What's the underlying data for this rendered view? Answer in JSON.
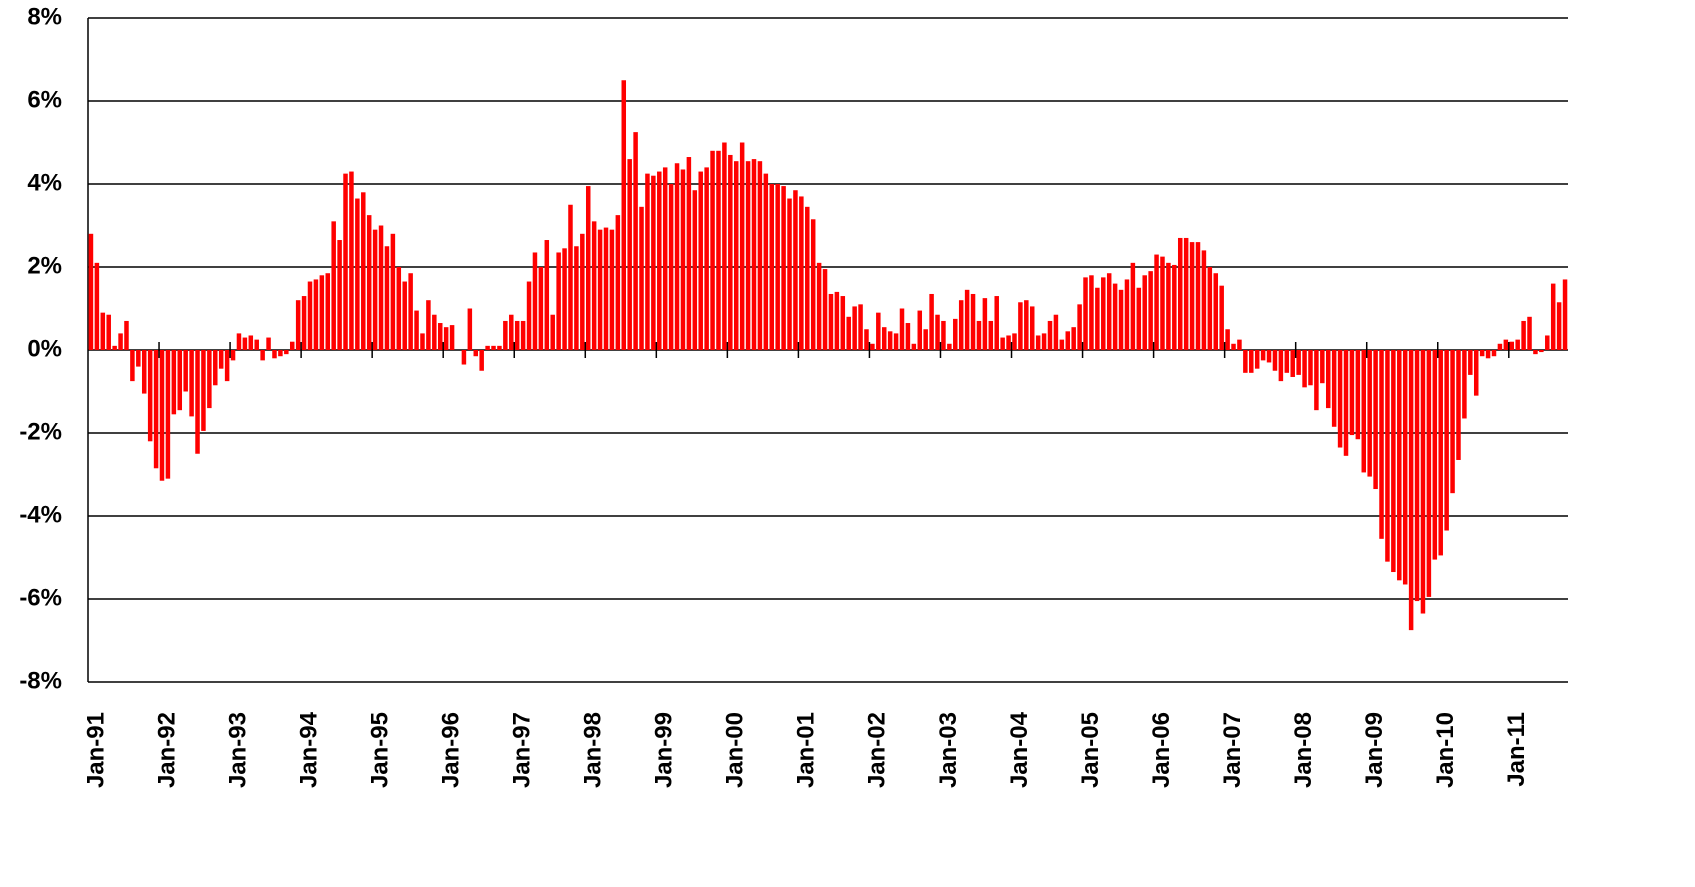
{
  "chart_data": {
    "type": "bar",
    "color": "#ff0000",
    "grid": true,
    "ylim": [
      -8,
      8
    ],
    "yticks": [
      {
        "value": -8,
        "label": "-8%"
      },
      {
        "value": -6,
        "label": "-6%"
      },
      {
        "value": -4,
        "label": "-4%"
      },
      {
        "value": -2,
        "label": "-2%"
      },
      {
        "value": 0,
        "label": "0%"
      },
      {
        "value": 2,
        "label": "2%"
      },
      {
        "value": 4,
        "label": "4%"
      },
      {
        "value": 6,
        "label": "6%"
      },
      {
        "value": 8,
        "label": "8%"
      }
    ],
    "categories": [
      "Jan-91",
      null,
      null,
      null,
      null,
      null,
      null,
      null,
      null,
      null,
      null,
      null,
      "Jan-92",
      null,
      null,
      null,
      null,
      null,
      null,
      null,
      null,
      null,
      null,
      null,
      "Jan-93",
      null,
      null,
      null,
      null,
      null,
      null,
      null,
      null,
      null,
      null,
      null,
      "Jan-94",
      null,
      null,
      null,
      null,
      null,
      null,
      null,
      null,
      null,
      null,
      null,
      "Jan-95",
      null,
      null,
      null,
      null,
      null,
      null,
      null,
      null,
      null,
      null,
      null,
      "Jan-96",
      null,
      null,
      null,
      null,
      null,
      null,
      null,
      null,
      null,
      null,
      null,
      "Jan-97",
      null,
      null,
      null,
      null,
      null,
      null,
      null,
      null,
      null,
      null,
      null,
      "Jan-98",
      null,
      null,
      null,
      null,
      null,
      null,
      null,
      null,
      null,
      null,
      null,
      "Jan-99",
      null,
      null,
      null,
      null,
      null,
      null,
      null,
      null,
      null,
      null,
      null,
      "Jan-00",
      null,
      null,
      null,
      null,
      null,
      null,
      null,
      null,
      null,
      null,
      null,
      "Jan-01",
      null,
      null,
      null,
      null,
      null,
      null,
      null,
      null,
      null,
      null,
      null,
      "Jan-02",
      null,
      null,
      null,
      null,
      null,
      null,
      null,
      null,
      null,
      null,
      null,
      "Jan-03",
      null,
      null,
      null,
      null,
      null,
      null,
      null,
      null,
      null,
      null,
      null,
      "Jan-04",
      null,
      null,
      null,
      null,
      null,
      null,
      null,
      null,
      null,
      null,
      null,
      "Jan-05",
      null,
      null,
      null,
      null,
      null,
      null,
      null,
      null,
      null,
      null,
      null,
      "Jan-06",
      null,
      null,
      null,
      null,
      null,
      null,
      null,
      null,
      null,
      null,
      null,
      "Jan-07",
      null,
      null,
      null,
      null,
      null,
      null,
      null,
      null,
      null,
      null,
      null,
      "Jan-08",
      null,
      null,
      null,
      null,
      null,
      null,
      null,
      null,
      null,
      null,
      null,
      "Jan-09",
      null,
      null,
      null,
      null,
      null,
      null,
      null,
      null,
      null,
      null,
      null,
      "Jan-10",
      null,
      null,
      null,
      null,
      null,
      null,
      null,
      null,
      null,
      null,
      null,
      "Jan-11",
      null,
      null,
      null,
      null,
      null,
      null,
      null,
      null,
      null
    ],
    "values": [
      2.8,
      2.1,
      0.9,
      0.85,
      0.1,
      0.4,
      0.7,
      -0.75,
      -0.4,
      -1.05,
      -2.2,
      -2.85,
      -3.15,
      -3.1,
      -1.55,
      -1.45,
      -1.0,
      -1.6,
      -2.5,
      -1.95,
      -1.4,
      -0.85,
      -0.45,
      -0.75,
      -0.25,
      0.4,
      0.3,
      0.35,
      0.25,
      -0.25,
      0.3,
      -0.2,
      -0.15,
      -0.1,
      0.2,
      1.2,
      1.3,
      1.65,
      1.7,
      1.8,
      1.85,
      3.1,
      2.65,
      4.25,
      4.3,
      3.65,
      3.8,
      3.25,
      2.9,
      3.0,
      2.5,
      2.8,
      2.0,
      1.65,
      1.85,
      0.95,
      0.4,
      1.2,
      0.85,
      0.65,
      0.55,
      0.6,
      0.0,
      -0.35,
      1.0,
      -0.15,
      -0.5,
      0.1,
      0.1,
      0.1,
      0.7,
      0.85,
      0.7,
      0.7,
      1.65,
      2.35,
      2.0,
      2.65,
      0.85,
      2.35,
      2.45,
      3.5,
      2.5,
      2.8,
      3.95,
      3.1,
      2.9,
      2.95,
      2.9,
      3.25,
      6.5,
      4.6,
      5.25,
      3.45,
      4.25,
      4.2,
      4.3,
      4.4,
      4.0,
      4.5,
      4.35,
      4.65,
      3.85,
      4.3,
      4.4,
      4.8,
      4.8,
      5.0,
      4.7,
      4.55,
      5.0,
      4.55,
      4.6,
      4.55,
      4.25,
      4.0,
      4.0,
      3.95,
      3.65,
      3.85,
      3.7,
      3.45,
      3.15,
      2.1,
      1.95,
      1.35,
      1.4,
      1.3,
      0.8,
      1.05,
      1.1,
      0.5,
      0.15,
      0.9,
      0.55,
      0.45,
      0.4,
      1.0,
      0.65,
      0.15,
      0.95,
      0.5,
      1.35,
      0.85,
      0.7,
      0.15,
      0.75,
      1.2,
      1.45,
      1.35,
      0.7,
      1.25,
      0.7,
      1.3,
      0.3,
      0.35,
      0.4,
      1.15,
      1.2,
      1.05,
      0.35,
      0.4,
      0.7,
      0.85,
      0.25,
      0.45,
      0.55,
      1.1,
      1.75,
      1.8,
      1.5,
      1.75,
      1.85,
      1.6,
      1.45,
      1.7,
      2.1,
      1.5,
      1.8,
      1.9,
      2.3,
      2.25,
      2.1,
      2.05,
      2.7,
      2.7,
      2.6,
      2.6,
      2.4,
      2.0,
      1.85,
      1.55,
      0.5,
      0.15,
      0.25,
      -0.55,
      -0.55,
      -0.45,
      -0.25,
      -0.3,
      -0.5,
      -0.75,
      -0.55,
      -0.65,
      -0.6,
      -0.9,
      -0.85,
      -1.45,
      -0.8,
      -1.4,
      -1.85,
      -2.35,
      -2.55,
      -2.05,
      -2.15,
      -2.95,
      -3.05,
      -3.35,
      -4.55,
      -5.1,
      -5.35,
      -5.55,
      -5.65,
      -6.75,
      -6.05,
      -6.35,
      -5.95,
      -5.05,
      -4.95,
      -4.35,
      -3.45,
      -2.65,
      -1.65,
      -0.6,
      -1.1,
      -0.15,
      -0.2,
      -0.15,
      0.15,
      0.25,
      0.2,
      0.25,
      0.7,
      0.8,
      -0.1,
      -0.05,
      0.35,
      1.6,
      1.15,
      1.7
    ]
  }
}
